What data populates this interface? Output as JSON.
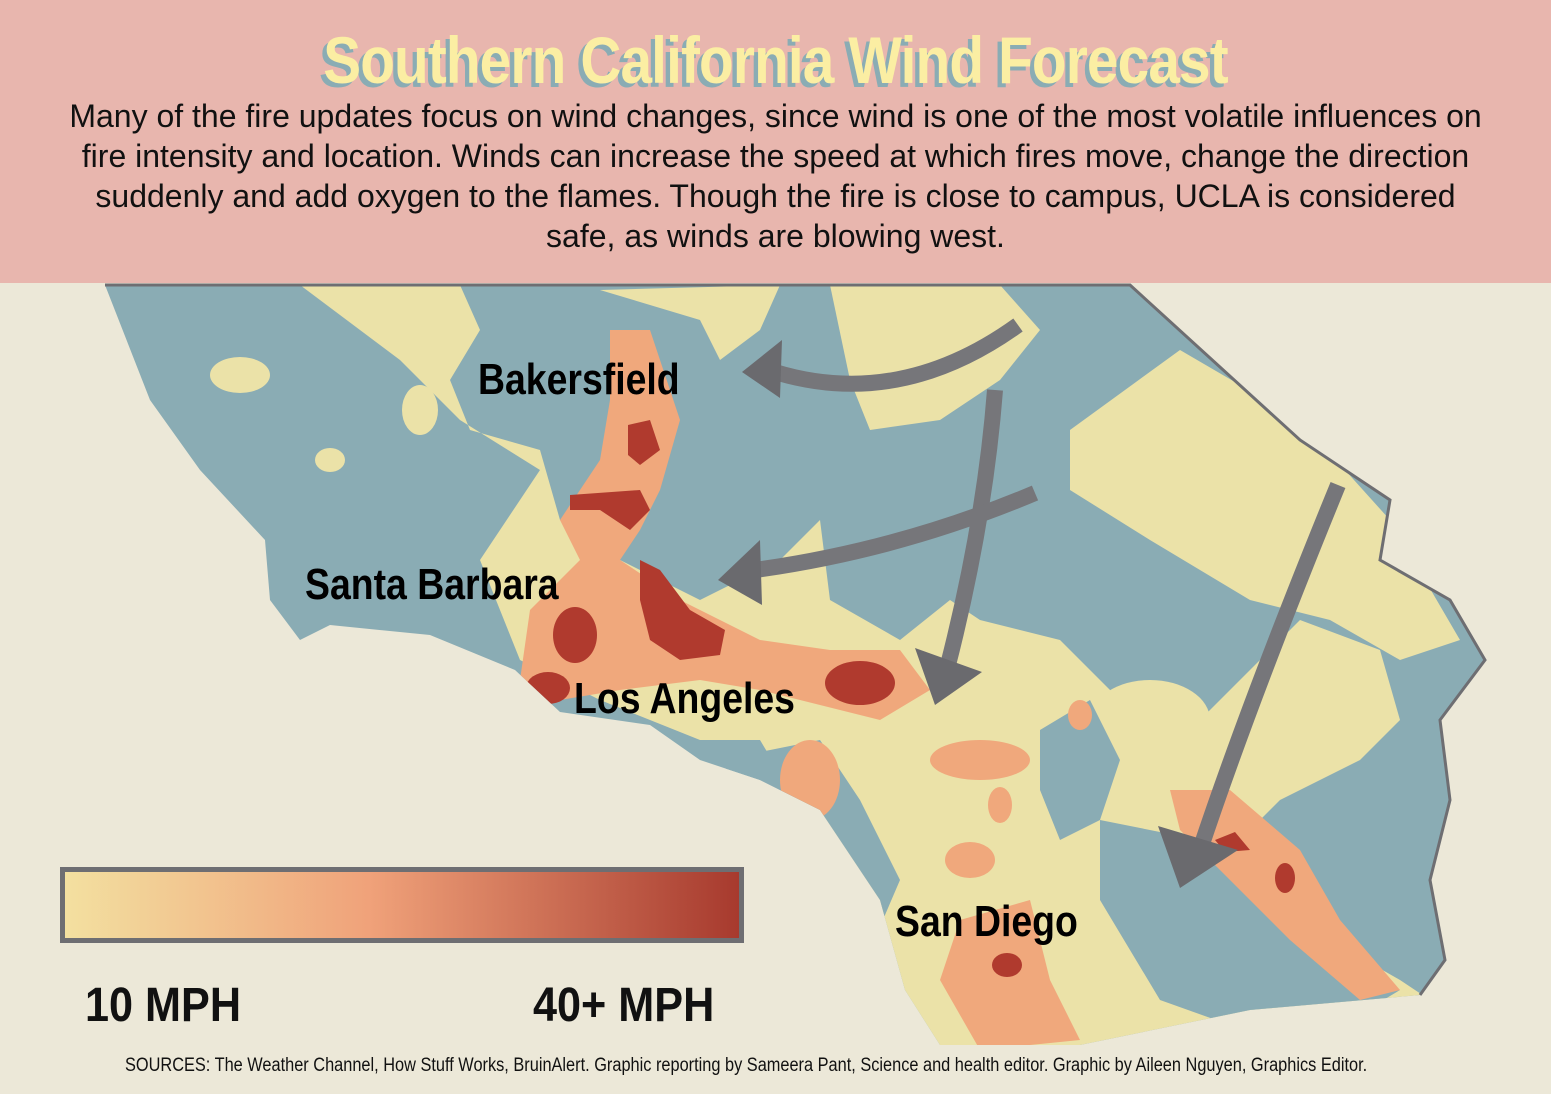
{
  "header": {
    "title": "Southern California Wind Forecast",
    "intro": "Many of the fire updates focus on wind changes, since wind is one of the most volatile influences on fire intensity and location. Winds can increase the speed at which fires move, change the direction suddenly and add oxygen to the flames.  Though the fire is close to campus, UCLA is considered safe, as winds are blowing west."
  },
  "map": {
    "cities": [
      "Bakersfield",
      "Santa Barbara",
      "Los Angeles",
      "San Diego"
    ],
    "colors": {
      "ocean": "#ece8d8",
      "low": "#ebe2a8",
      "calm": "#8aacb4",
      "mid": "#f0a87c",
      "high": "#b03a2e",
      "arrow": "#76767a"
    }
  },
  "legend": {
    "min_label": "10  MPH",
    "max_label": "40+ MPH"
  },
  "footer": {
    "sources": "SOURCES: The Weather Channel, How Stuff Works, BruinAlert. Graphic reporting by Sameera Pant, Science and health editor. Graphic by Aileen Nguyen, Graphics Editor."
  }
}
